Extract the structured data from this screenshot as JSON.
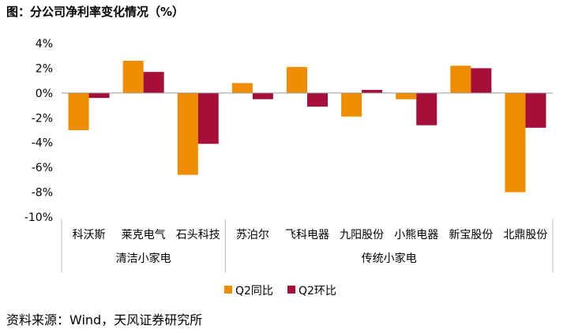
{
  "title": "图：分公司净利率变化情况（%）",
  "source": "资料来源：Wind，天风证券研究所",
  "chart_data": {
    "type": "bar",
    "ylim": [
      -10,
      4
    ],
    "yticks": [
      4,
      2,
      0,
      -2,
      -4,
      -6,
      -8,
      -10
    ],
    "ytick_labels": [
      "4%",
      "2%",
      "0%",
      "-2%",
      "-4%",
      "-6%",
      "-8%",
      "-10%"
    ],
    "categories": [
      "科沃斯",
      "莱克电气",
      "石头科技",
      "苏泊尔",
      "飞科电器",
      "九阳股份",
      "小熊电器",
      "新宝股份",
      "北鼎股份"
    ],
    "groups": [
      {
        "label": "清洁小家电",
        "count": 3
      },
      {
        "label": "传统小家电",
        "count": 6
      }
    ],
    "series": [
      {
        "name": "Q2同比",
        "color": "#F08C00",
        "values": [
          -3.0,
          2.6,
          -6.6,
          0.8,
          2.1,
          -1.9,
          -0.5,
          2.2,
          -8.0
        ]
      },
      {
        "name": "Q2环比",
        "color": "#A50F3A",
        "values": [
          -0.4,
          1.7,
          -4.1,
          -0.5,
          -1.1,
          0.25,
          -2.6,
          2.0,
          -2.8
        ]
      }
    ],
    "legend_position": "bottom"
  }
}
